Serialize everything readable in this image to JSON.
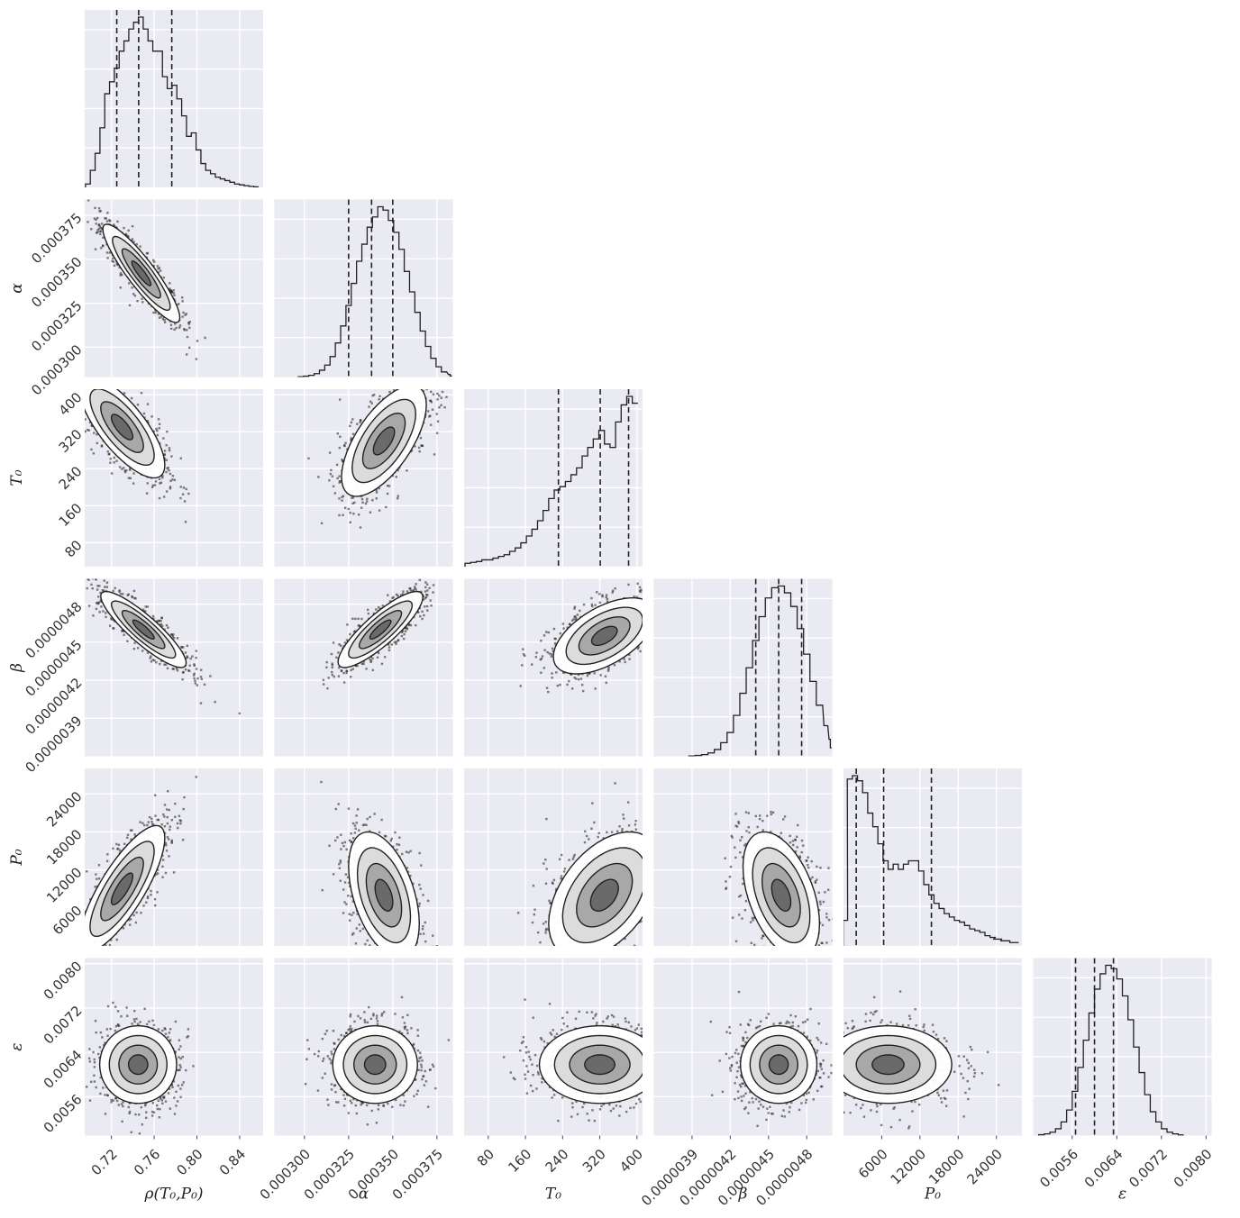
{
  "chart_data": {
    "type": "corner",
    "title": "",
    "parameters": [
      {
        "key": "rho",
        "label": "ρ(T₀,P₀)",
        "range": [
          0.695,
          0.862
        ],
        "ticks": [
          0.72,
          0.76,
          0.8,
          0.84
        ],
        "tick_labels": [
          "0.72",
          "0.76",
          "0.80",
          "0.84"
        ],
        "quantiles": [
          0.725,
          0.7455,
          0.7765
        ],
        "hist": [
          0.02,
          0.1,
          0.2,
          0.35,
          0.55,
          0.62,
          0.7,
          0.8,
          0.86,
          0.93,
          0.97,
          1.0,
          0.93,
          0.86,
          0.8,
          0.8,
          0.65,
          0.58,
          0.6,
          0.52,
          0.42,
          0.3,
          0.32,
          0.22,
          0.14,
          0.1,
          0.08,
          0.06,
          0.05,
          0.04,
          0.03,
          0.02,
          0.015,
          0.01,
          0.006,
          0.003
        ],
        "hist_x": [
          0.698,
          0.7025,
          0.707,
          0.7115,
          0.716,
          0.7205,
          0.725,
          0.7295,
          0.734,
          0.7385,
          0.743,
          0.7475,
          0.752,
          0.7565,
          0.761,
          0.7655,
          0.77,
          0.7745,
          0.779,
          0.7835,
          0.788,
          0.7925,
          0.797,
          0.8015,
          0.806,
          0.8105,
          0.815,
          0.8195,
          0.824,
          0.8285,
          0.833,
          0.8375,
          0.842,
          0.8465,
          0.851,
          0.8555
        ]
      },
      {
        "key": "alpha",
        "label": "α",
        "range": [
          0.000283,
          0.000384
        ],
        "ticks": [
          0.0003,
          0.000325,
          0.00035,
          0.000375
        ],
        "tick_labels": [
          "0.000300",
          "0.000325",
          "0.000350",
          "0.000375"
        ],
        "quantiles": [
          0.000325,
          0.000338,
          0.00035
        ],
        "hist": [
          0.002,
          0.005,
          0.01,
          0.02,
          0.04,
          0.07,
          0.12,
          0.2,
          0.3,
          0.42,
          0.55,
          0.68,
          0.78,
          0.88,
          0.94,
          1.0,
          0.98,
          0.92,
          0.85,
          0.75,
          0.62,
          0.5,
          0.38,
          0.27,
          0.18,
          0.11,
          0.06,
          0.03,
          0.015,
          0.006
        ],
        "hist_x": [
          0.000298,
          0.000301,
          0.000304,
          0.000307,
          0.00031,
          0.000313,
          0.000316,
          0.000319,
          0.000322,
          0.000325,
          0.000328,
          0.000331,
          0.000334,
          0.000337,
          0.00034,
          0.000343,
          0.000346,
          0.000349,
          0.000352,
          0.000355,
          0.000358,
          0.000361,
          0.000364,
          0.000367,
          0.00037,
          0.000373,
          0.000376,
          0.000379,
          0.000382,
          0.000383
        ]
      },
      {
        "key": "T0",
        "label": "T₀",
        "range": [
          28,
          412
        ],
        "ticks": [
          80,
          160,
          240,
          320,
          400
        ],
        "tick_labels": [
          "80",
          "160",
          "240",
          "320",
          "400"
        ],
        "quantiles": [
          231,
          321,
          382
        ],
        "hist": [
          0.02,
          0.025,
          0.03,
          0.04,
          0.04,
          0.05,
          0.06,
          0.07,
          0.09,
          0.11,
          0.14,
          0.18,
          0.22,
          0.27,
          0.33,
          0.4,
          0.45,
          0.47,
          0.5,
          0.54,
          0.58,
          0.65,
          0.7,
          0.75,
          0.8,
          0.72,
          0.7,
          0.85,
          0.95,
          1.0,
          0.96
        ],
        "hist_x": [
          36,
          48,
          60,
          72,
          84,
          96,
          108,
          120,
          132,
          144,
          156,
          168,
          180,
          192,
          204,
          216,
          228,
          240,
          252,
          264,
          276,
          288,
          300,
          312,
          324,
          336,
          348,
          360,
          372,
          384,
          396
        ]
      },
      {
        "key": "beta",
        "label": "β",
        "range": [
          3.6e-06,
          5e-06
        ],
        "ticks": [
          3.9e-06,
          4.2e-06,
          4.5e-06,
          4.8e-06
        ],
        "tick_labels": [
          "0.0000039",
          "0.0000042",
          "0.0000045",
          "0.0000048"
        ],
        "quantiles": [
          4.4e-06,
          4.58e-06,
          4.76e-06
        ],
        "hist": [
          0.002,
          0.005,
          0.01,
          0.02,
          0.04,
          0.08,
          0.14,
          0.24,
          0.37,
          0.52,
          0.68,
          0.82,
          0.93,
          0.99,
          1.0,
          0.96,
          0.88,
          0.75,
          0.6,
          0.44,
          0.3,
          0.18,
          0.1,
          0.05
        ],
        "hist_x": [
          3.9e-06,
          3.95e-06,
          4e-06,
          4.05e-06,
          4.1e-06,
          4.15e-06,
          4.2e-06,
          4.25e-06,
          4.3e-06,
          4.35e-06,
          4.4e-06,
          4.45e-06,
          4.5e-06,
          4.55e-06,
          4.6e-06,
          4.65e-06,
          4.7e-06,
          4.75e-06,
          4.8e-06,
          4.85e-06,
          4.9e-06,
          4.95e-06,
          4.98e-06,
          4.99e-06
        ]
      },
      {
        "key": "P0",
        "label": "P₀",
        "range": [
          0,
          28000
        ],
        "ticks": [
          6000,
          12000,
          18000,
          24000
        ],
        "tick_labels": [
          "6000",
          "12000",
          "18000",
          "24000"
        ],
        "quantiles": [
          2000,
          6300,
          13800
        ],
        "hist": [
          0.15,
          0.98,
          1.0,
          0.97,
          0.9,
          0.78,
          0.7,
          0.6,
          0.5,
          0.45,
          0.48,
          0.45,
          0.48,
          0.5,
          0.5,
          0.44,
          0.36,
          0.3,
          0.25,
          0.22,
          0.19,
          0.17,
          0.15,
          0.14,
          0.12,
          0.1,
          0.09,
          0.08,
          0.06,
          0.05,
          0.04,
          0.03,
          0.02
        ],
        "hist_x": [
          300,
          1000,
          1800,
          2600,
          3400,
          4200,
          5000,
          5800,
          6600,
          7400,
          8200,
          9000,
          9800,
          10600,
          11400,
          12200,
          13000,
          13800,
          14600,
          15400,
          16200,
          17000,
          17800,
          18600,
          19400,
          20200,
          21000,
          21800,
          22600,
          23400,
          24200,
          25400,
          26800
        ]
      },
      {
        "key": "eps",
        "label": "ε",
        "range": [
          0.0049,
          0.0081
        ],
        "ticks": [
          0.0056,
          0.0064,
          0.0072,
          0.008
        ],
        "tick_labels": [
          "0.0056",
          "0.0064",
          "0.0072",
          "0.0080"
        ],
        "quantiles": [
          0.00566,
          0.006,
          0.00634
        ],
        "hist": [
          0.005,
          0.01,
          0.02,
          0.04,
          0.08,
          0.15,
          0.26,
          0.4,
          0.56,
          0.72,
          0.86,
          0.95,
          1.0,
          0.98,
          0.92,
          0.82,
          0.68,
          0.52,
          0.37,
          0.24,
          0.14,
          0.08,
          0.04,
          0.02,
          0.01,
          0.004
        ],
        "hist_x": [
          0.00505,
          0.00515,
          0.00525,
          0.00535,
          0.00545,
          0.00555,
          0.00565,
          0.00575,
          0.00585,
          0.00595,
          0.00605,
          0.00615,
          0.00625,
          0.00635,
          0.00645,
          0.00655,
          0.00665,
          0.00675,
          0.00685,
          0.00695,
          0.00705,
          0.00715,
          0.00725,
          0.00735,
          0.00745,
          0.00755
        ]
      }
    ],
    "pairs": [
      {
        "i": 1,
        "j": 0,
        "center": [
          0.748,
          0.000342
        ],
        "spread": [
          0.018,
          1.4e-05
        ],
        "corr": -0.9
      },
      {
        "i": 2,
        "j": 0,
        "center": [
          0.73,
          330
        ],
        "spread": [
          0.02,
          55
        ],
        "corr": -0.75
      },
      {
        "i": 2,
        "j": 1,
        "center": [
          0.000345,
          300
        ],
        "spread": [
          1.2e-05,
          60
        ],
        "corr": 0.65
      },
      {
        "i": 3,
        "j": 0,
        "center": [
          0.75,
          4.6e-06
        ],
        "spread": [
          0.02,
          1.5e-07
        ],
        "corr": -0.88
      },
      {
        "i": 3,
        "j": 1,
        "center": [
          0.000343,
          4.6e-06
        ],
        "spread": [
          1.2e-05,
          1.5e-07
        ],
        "corr": 0.85
      },
      {
        "i": 3,
        "j": 2,
        "center": [
          330,
          4.55e-06
        ],
        "spread": [
          55,
          1.5e-07
        ],
        "corr": 0.55
      },
      {
        "i": 4,
        "j": 0,
        "center": [
          0.73,
          9000
        ],
        "spread": [
          0.02,
          5000
        ],
        "corr": 0.8
      },
      {
        "i": 4,
        "j": 1,
        "center": [
          0.000345,
          8000
        ],
        "spread": [
          1e-05,
          5000
        ],
        "corr": -0.45
      },
      {
        "i": 4,
        "j": 2,
        "center": [
          330,
          8000
        ],
        "spread": [
          60,
          5000
        ],
        "corr": 0.45
      },
      {
        "i": 4,
        "j": 3,
        "center": [
          4.6e-06,
          8000
        ],
        "spread": [
          1.5e-07,
          5000
        ],
        "corr": -0.45
      },
      {
        "i": 5,
        "j": 0,
        "center": [
          0.745,
          0.00618
        ],
        "spread": [
          0.018,
          0.00035
        ],
        "corr": 0.0
      },
      {
        "i": 5,
        "j": 1,
        "center": [
          0.00034,
          0.00618
        ],
        "spread": [
          1.2e-05,
          0.00035
        ],
        "corr": 0.0
      },
      {
        "i": 5,
        "j": 2,
        "center": [
          320,
          0.00618
        ],
        "spread": [
          65,
          0.00035
        ],
        "corr": 0.0
      },
      {
        "i": 5,
        "j": 3,
        "center": [
          4.58e-06,
          0.00618
        ],
        "spread": [
          1.5e-07,
          0.00035
        ],
        "corr": 0.0
      },
      {
        "i": 5,
        "j": 4,
        "center": [
          7000,
          0.00618
        ],
        "spread": [
          5000,
          0.00035
        ],
        "corr": 0.0
      }
    ],
    "style": {
      "panel_bg": "#eaeaf2",
      "grid": "#ffffff",
      "line": "#222222",
      "grid_on": true
    }
  }
}
